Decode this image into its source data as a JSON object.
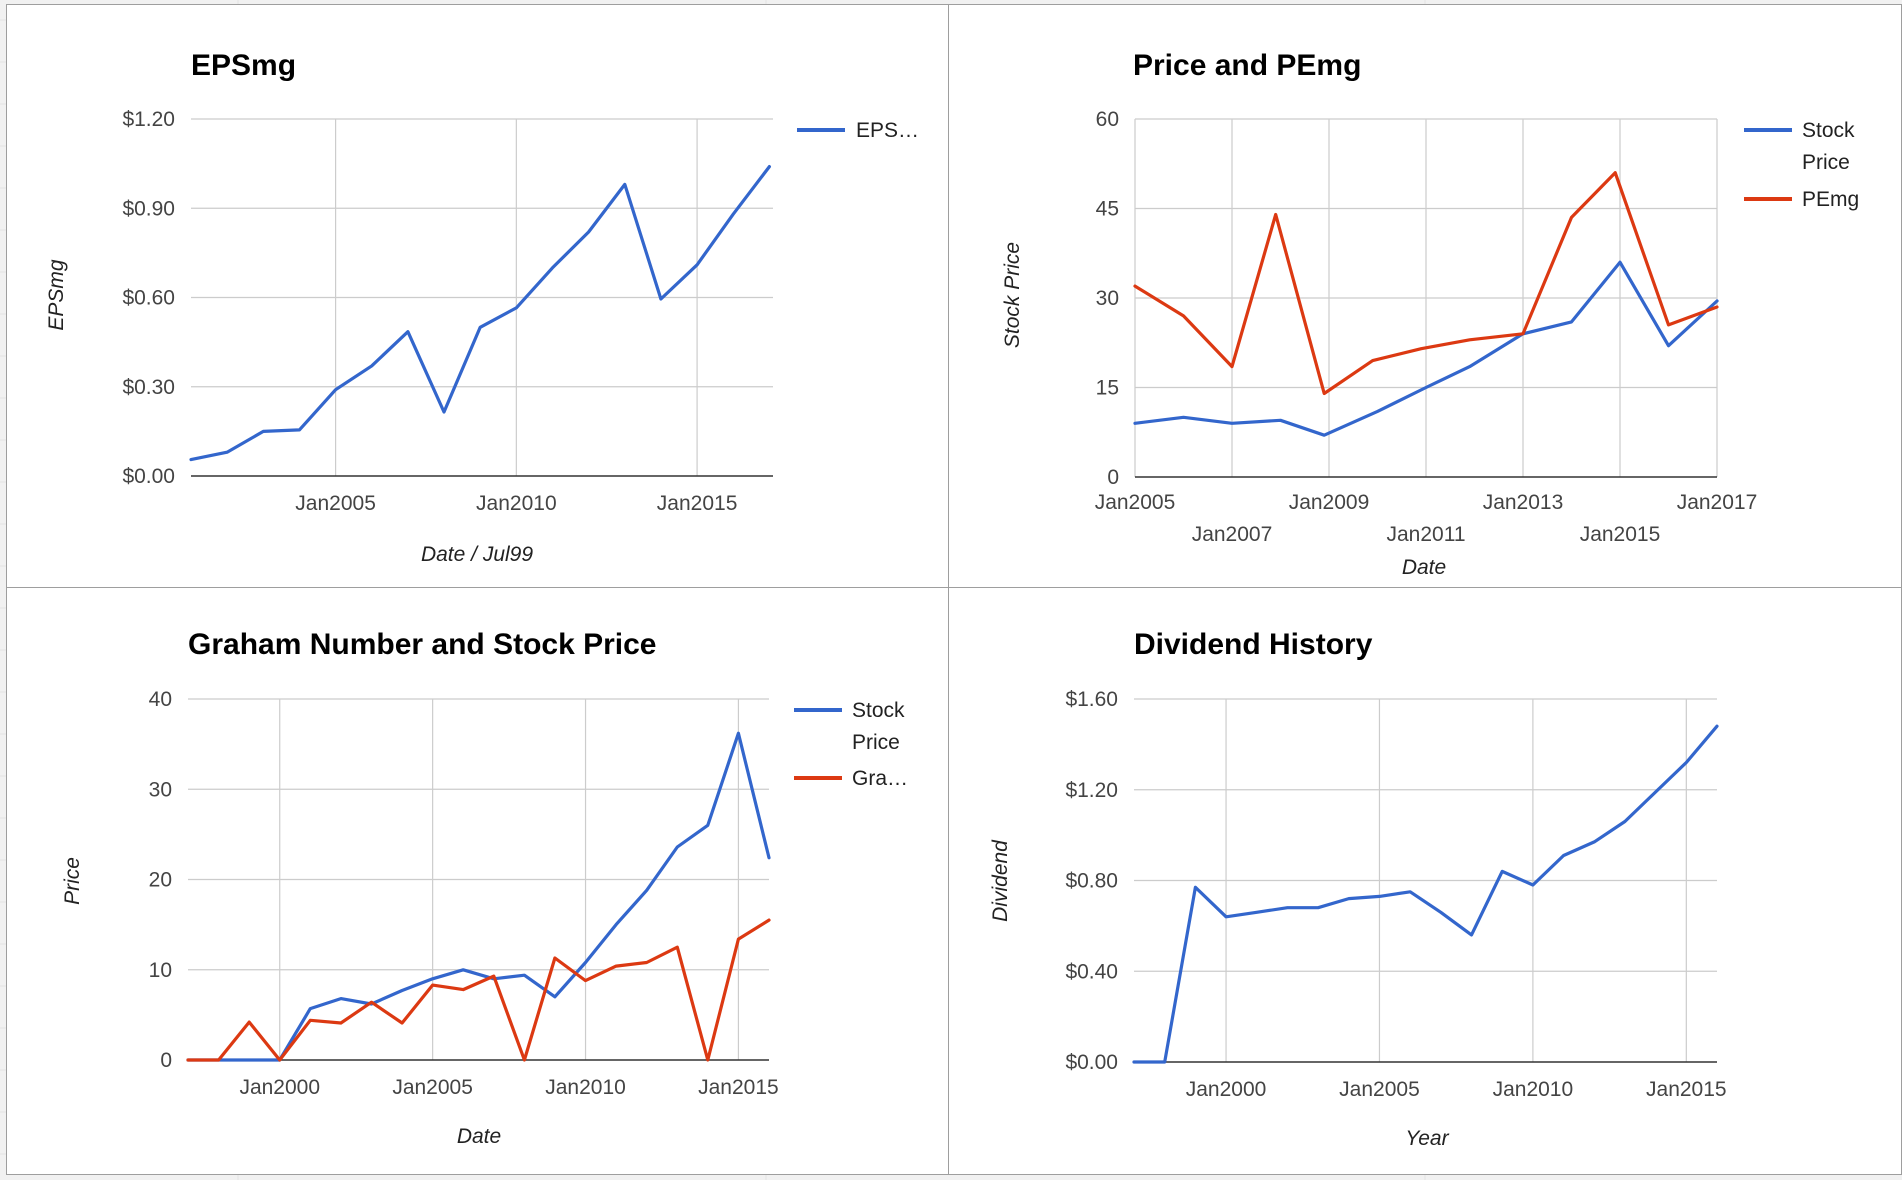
{
  "colors": {
    "blue": "#3366cc",
    "red": "#dc3912",
    "grid": "#cccccc",
    "baseline": "#333333"
  },
  "chart_data": [
    {
      "id": "eps",
      "type": "line",
      "title": "EPSmg",
      "xlabel": "Date / Jul99",
      "ylabel": "EPSmg",
      "x_axis": "date",
      "xlim": [
        2001.0,
        2017.1
      ],
      "ylim": [
        0,
        1.2
      ],
      "y_ticks": [
        0,
        0.3,
        0.6,
        0.9,
        1.2
      ],
      "y_tick_labels": [
        "$0.00",
        "$0.30",
        "$0.60",
        "$0.90",
        "$1.20"
      ],
      "x_ticks": [
        2005,
        2010,
        2015
      ],
      "x_tick_labels": [
        "Jan2005",
        "Jan2010",
        "Jan2015"
      ],
      "grid": true,
      "legend": "right",
      "series": [
        {
          "name": "EPS…",
          "color": "#3366cc",
          "x": [
            2001.0,
            2002.0,
            2003.0,
            2004.0,
            2005.0,
            2006.0,
            2007.0,
            2008.0,
            2009.0,
            2010.0,
            2011.0,
            2012.0,
            2013.0,
            2014.0,
            2015.0,
            2016.0,
            2017.0
          ],
          "y": [
            0.055,
            0.08,
            0.15,
            0.155,
            0.29,
            0.37,
            0.485,
            0.215,
            0.5,
            0.565,
            0.7,
            0.82,
            0.98,
            0.595,
            0.71,
            0.88,
            1.04
          ]
        }
      ]
    },
    {
      "id": "price",
      "type": "line",
      "title": "Price and PEmg",
      "xlabel": "Date",
      "ylabel": "Stock Price",
      "x_axis": "date",
      "xlim": [
        2005.0,
        2017.0
      ],
      "ylim": [
        0,
        60
      ],
      "y_ticks": [
        0,
        15,
        30,
        45,
        60
      ],
      "y_tick_labels": [
        "0",
        "15",
        "30",
        "45",
        "60"
      ],
      "x_ticks": [
        2005,
        2007,
        2009,
        2011,
        2013,
        2015,
        2017
      ],
      "x_tick_labels": [
        "Jan2005",
        "Jan2007",
        "Jan2009",
        "Jan2011",
        "Jan2013",
        "Jan2015",
        "Jan2017"
      ],
      "grid": true,
      "legend": "right",
      "series": [
        {
          "name": "Stock Price",
          "color": "#3366cc",
          "x": [
            2005.0,
            2006.0,
            2007.0,
            2008.0,
            2008.9,
            2010.0,
            2011.0,
            2011.9,
            2013.0,
            2014.0,
            2015.0,
            2016.0,
            2017.0
          ],
          "y": [
            9.0,
            10.0,
            9.0,
            9.5,
            7.0,
            11.0,
            15.0,
            18.5,
            24.0,
            26.0,
            36.0,
            22.0,
            29.5
          ]
        },
        {
          "name": "PEmg",
          "color": "#dc3912",
          "x": [
            2005.0,
            2006.0,
            2007.0,
            2007.9,
            2008.9,
            2009.9,
            2010.9,
            2011.9,
            2013.0,
            2014.0,
            2014.9,
            2016.0,
            2017.0
          ],
          "y": [
            32.0,
            27.0,
            18.5,
            44.0,
            14.0,
            19.5,
            21.5,
            23.0,
            24.0,
            43.5,
            51.0,
            25.5,
            28.5
          ]
        }
      ]
    },
    {
      "id": "graham",
      "type": "line",
      "title": "Graham Number and Stock Price",
      "xlabel": "Date",
      "ylabel": "Price",
      "x_axis": "date",
      "xlim": [
        1997.0,
        2016.0
      ],
      "ylim": [
        0,
        40
      ],
      "y_ticks": [
        0,
        10,
        20,
        30,
        40
      ],
      "y_tick_labels": [
        "0",
        "10",
        "20",
        "30",
        "40"
      ],
      "x_ticks": [
        2000,
        2005,
        2010,
        2015
      ],
      "x_tick_labels": [
        "Jan2000",
        "Jan2005",
        "Jan2010",
        "Jan2015"
      ],
      "grid": true,
      "legend": "right",
      "series": [
        {
          "name": "Stock Price",
          "color": "#3366cc",
          "x": [
            1997,
            1998,
            1999,
            2000,
            2001,
            2002,
            2003,
            2004,
            2005,
            2006,
            2007,
            2008,
            2009,
            2010,
            2011,
            2012,
            2013,
            2014,
            2015,
            2016
          ],
          "y": [
            0,
            0,
            0,
            0,
            5.7,
            6.8,
            6.2,
            7.7,
            9.0,
            10.0,
            9.0,
            9.4,
            7.0,
            10.8,
            15.0,
            18.8,
            23.6,
            26.0,
            36.2,
            22.4
          ]
        },
        {
          "name": "Gra…",
          "color": "#dc3912",
          "x": [
            1997,
            1998,
            1999,
            2000,
            2001,
            2002,
            2003,
            2004,
            2005,
            2006,
            2007,
            2008,
            2009,
            2010,
            2011,
            2012,
            2013,
            2014,
            2015,
            2016
          ],
          "y": [
            0,
            0,
            4.2,
            0,
            4.4,
            4.1,
            6.4,
            4.1,
            8.3,
            7.8,
            9.3,
            0,
            11.3,
            8.8,
            10.4,
            10.8,
            12.5,
            0,
            13.4,
            15.5
          ]
        }
      ]
    },
    {
      "id": "dividend",
      "type": "line",
      "title": "Dividend History",
      "xlabel": "Year",
      "ylabel": "Dividend",
      "x_axis": "date",
      "xlim": [
        1997.0,
        2016.0
      ],
      "ylim": [
        0,
        1.6
      ],
      "y_ticks": [
        0,
        0.4,
        0.8,
        1.2,
        1.6
      ],
      "y_tick_labels": [
        "$0.00",
        "$0.40",
        "$0.80",
        "$1.20",
        "$1.60"
      ],
      "x_ticks": [
        2000,
        2005,
        2010,
        2015
      ],
      "x_tick_labels": [
        "Jan2000",
        "Jan2005",
        "Jan2010",
        "Jan2015"
      ],
      "grid": true,
      "legend": "none",
      "series": [
        {
          "name": "",
          "color": "#3366cc",
          "x": [
            1997,
            1998,
            1999,
            2000,
            2001,
            2002,
            2003,
            2004,
            2005,
            2006,
            2007,
            2008,
            2009,
            2010,
            2011,
            2012,
            2013,
            2014,
            2015,
            2016
          ],
          "y": [
            0,
            0,
            0.77,
            0.64,
            0.66,
            0.68,
            0.68,
            0.72,
            0.73,
            0.75,
            0.66,
            0.56,
            0.84,
            0.78,
            0.91,
            0.97,
            1.06,
            1.19,
            1.32,
            1.48
          ]
        }
      ]
    }
  ]
}
